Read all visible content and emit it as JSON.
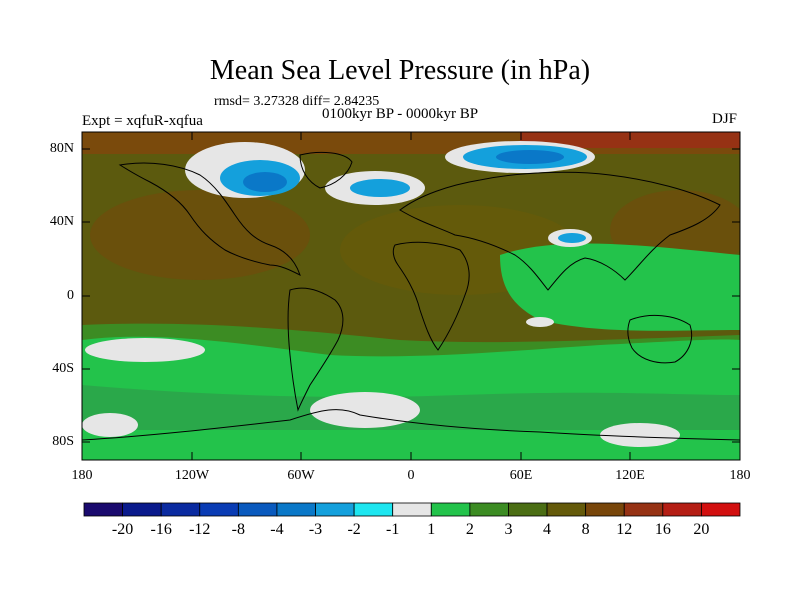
{
  "title": "Mean Sea Level Pressure (in hPa)",
  "stats": "rmsd= 3.27328  diff= 2.84235",
  "period": "0100kyr BP - 0000kyr BP",
  "experiment": "Expt = xqfuR-xqfua",
  "season": "DJF",
  "lat_labels": [
    "80N",
    "40N",
    "0",
    "40S",
    "80S"
  ],
  "lon_labels": [
    "180",
    "120W",
    "60W",
    "0",
    "60E",
    "120E",
    "180"
  ],
  "colorbar": {
    "labels": [
      "-20",
      "-16",
      "-12",
      "-8",
      "-4",
      "-3",
      "-2",
      "-1",
      "1",
      "2",
      "3",
      "4",
      "8",
      "12",
      "16",
      "20"
    ],
    "colors": [
      "#1a0a6e",
      "#0a1a8c",
      "#0a2aa0",
      "#0a3cb4",
      "#0a5abe",
      "#0a78c8",
      "#14a0dc",
      "#1ee6f0",
      "#e6e6e6",
      "#23c34b",
      "#3c8c23",
      "#4b6e14",
      "#645a0a",
      "#78460a",
      "#963214",
      "#b41e14",
      "#d20f0f"
    ]
  },
  "colors": {
    "background_field": "#5a5a0c",
    "land_outline": "#000000"
  }
}
